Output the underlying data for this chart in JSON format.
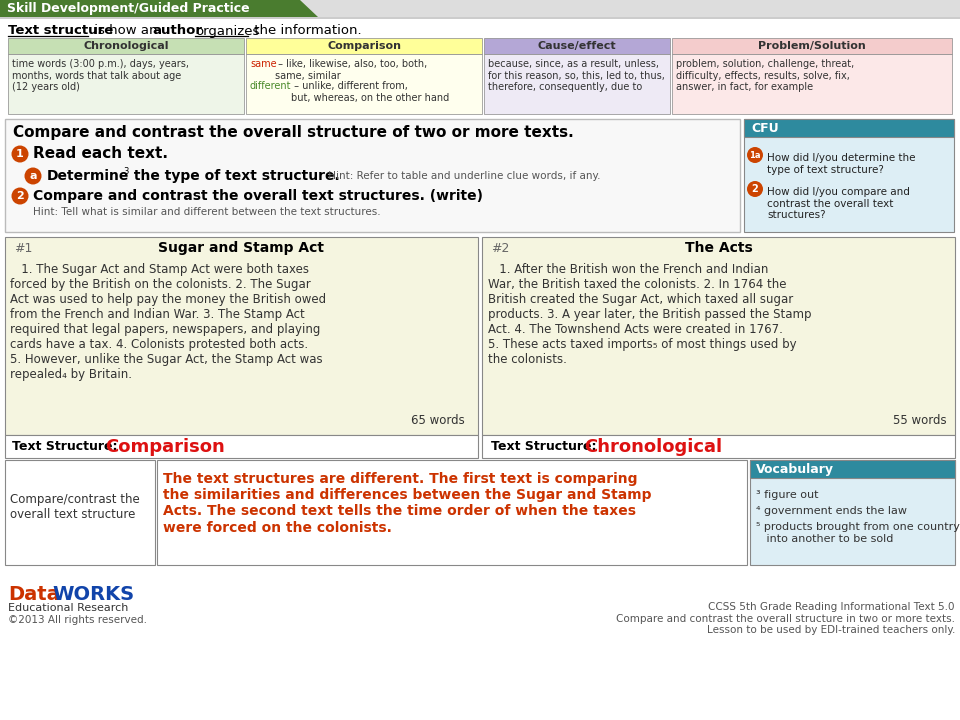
{
  "title_banner": "Skill Development/Guided Practice",
  "title_banner_color": "#4a7c2f",
  "table_headers": [
    "Chronological",
    "Comparison",
    "Cause/effect",
    "Problem/Solution"
  ],
  "table_header_colors": [
    "#c6e0b4",
    "#ffff99",
    "#b4a7d6",
    "#f4cccc"
  ],
  "table_body_colors": [
    "#eef5e8",
    "#ffffee",
    "#eeeaf5",
    "#fce8e8"
  ],
  "table_col1": "time words (3:00 p.m.), days, years,\nmonths, words that talk about age\n(12 years old)",
  "table_col2_same": "same",
  "table_col2_same_rest": " – like, likewise, also, too, both,\nsame, similar",
  "table_col2_diff": "different",
  "table_col2_diff_rest": " – unlike, different from,\nbut, whereas, on the other hand",
  "table_col3": "because, since, as a result, unless,\nfor this reason, so, this, led to, thus,\ntherefore, consequently, due to",
  "table_col4": "problem, solution, challenge, threat,\ndifficulty, effects, results, solve, fix,\nanswer, in fact, for example",
  "main_title": "Compare and contrast the overall structure of two or more texts.",
  "step1_label": "1",
  "step1_text": "Read each text.",
  "step2a_label": "a",
  "step2a_bold": "Determine",
  "step2a_sub": "3",
  "step2a_bold2": " the type of text structure.",
  "step2a_hint": " Hint: Refer to table and underline clue words, if any.",
  "step2b_label": "2",
  "step2b_bold": "Compare and contrast the overall text structures. (write)",
  "step2b_hint": "Hint: Tell what is similar and different between the text structures.",
  "cfu_title": "CFU",
  "cfu_color": "#2e8a9e",
  "cfu_q1_label": "1a",
  "cfu_q1": "How did I/you determine the\ntype of text structure?",
  "cfu_q2_label": "2",
  "cfu_q2": "How did I/you compare and\ncontrast the overall text\nstructures?",
  "text1_num": "#1",
  "text1_title": "Sugar and Stamp Act",
  "text1_body": "   1. The Sugar Act and Stamp Act were both taxes\nforced by the British on the colonists. 2. The Sugar\nAct was used to help pay the money the British owed\nfrom the French and Indian War. 3. The Stamp Act\nrequired that legal papers, newspapers, and playing\ncards have a tax. 4. Colonists protested both acts.\n5. However, unlike the Sugar Act, the Stamp Act was\nrepealed₄ by Britain.",
  "text1_words": "65 words",
  "text1_structure": "Comparison",
  "text2_num": "#2",
  "text2_title": "The Acts",
  "text2_body": "   1. After the British won the French and Indian\nWar, the British taxed the colonists. 2. In 1764 the\nBritish created the Sugar Act, which taxed all sugar\nproducts. 3. A year later, the British passed the Stamp\nAct. 4. The Townshend Acts were created in 1767.\n5. These acts taxed imports₅ of most things used by\nthe colonists.",
  "text2_words": "55 words",
  "text2_structure": "Chronological",
  "compare_label": "Compare/contrast the\noverall text structure",
  "compare_text": "The text structures are different. The first text is comparing\nthe similarities and differences between the Sugar and Stamp\nActs. The second text tells the time order of when the taxes\nwere forced on the colonists.",
  "vocab_title": "Vocabulary",
  "vocab_color": "#2e8a9e",
  "vocab_item1": "³ figure out",
  "vocab_item2": "⁴ government ends the law",
  "vocab_item3": "⁵ products brought from one country\n   into another to be sold",
  "footer_left1": "DataWORKS",
  "footer_left2": "Educational Research",
  "footer_left3": "©2013 All rights reserved.",
  "footer_right": "CCSS 5th Grade Reading Informational Text 5.0\nCompare and contrast the overall structure in two or more texts.\nLesson to be used by EDI-trained teachers only.",
  "circle_color": "#cc4400",
  "text_dark": "#222222",
  "red_word": "#cc2200",
  "green_word": "#4a8a2a",
  "orange_text": "#cc3300",
  "bg": "#ffffff"
}
